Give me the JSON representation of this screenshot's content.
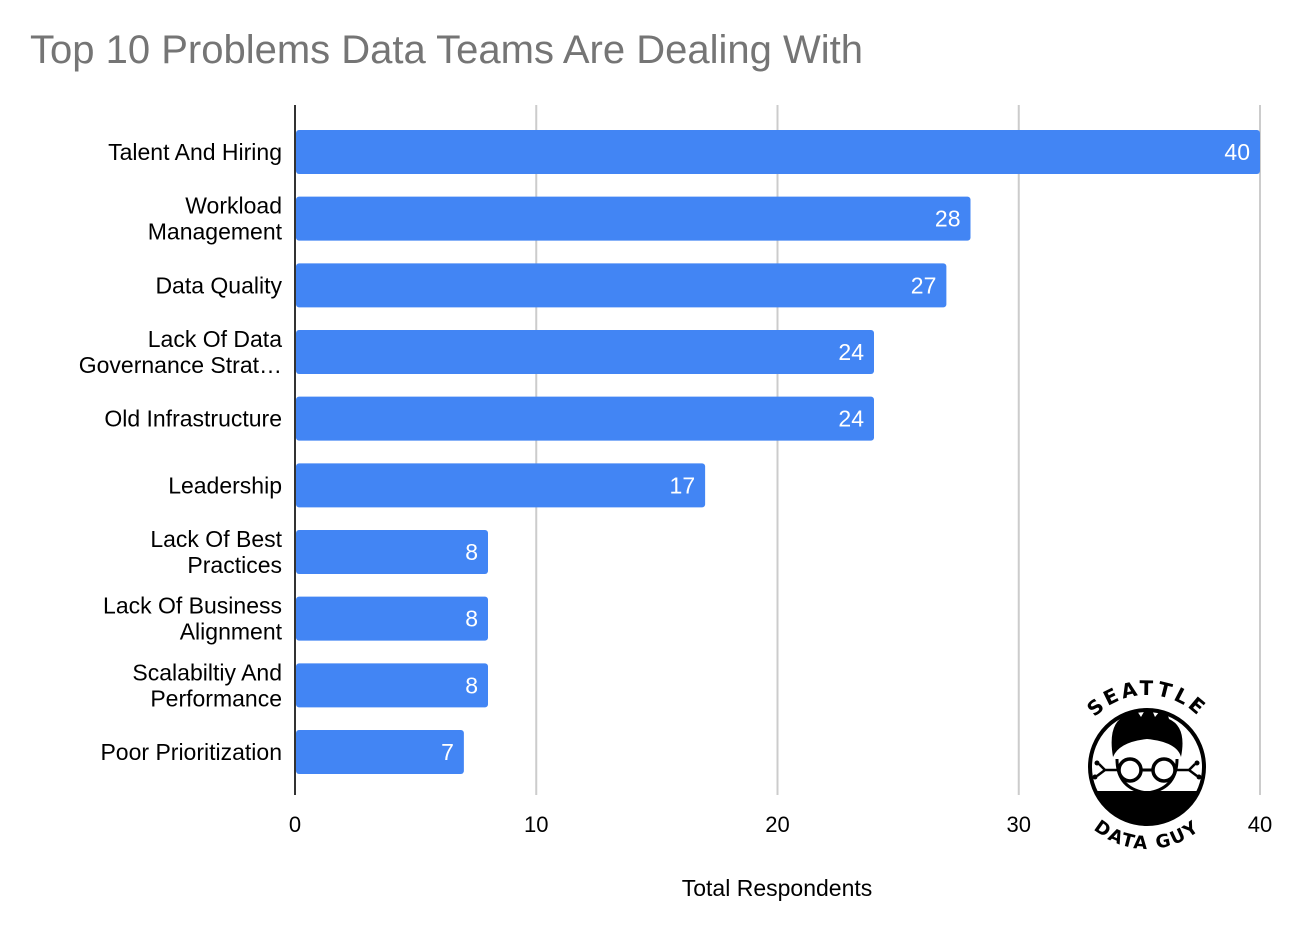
{
  "chart_data": {
    "type": "bar",
    "orientation": "horizontal",
    "title": "Top 10 Problems Data Teams Are Dealing With",
    "xlabel": "Total Respondents",
    "ylabel": "",
    "xlim": [
      0,
      40
    ],
    "ticks": [
      0,
      10,
      20,
      30,
      40
    ],
    "grid": true,
    "legend": "none",
    "bar_color": "#4285f4",
    "categories": [
      [
        "Talent And Hiring"
      ],
      [
        "Workload",
        "Management"
      ],
      [
        "Data Quality"
      ],
      [
        "Lack Of Data",
        "Governance Strat…"
      ],
      [
        "Old Infrastructure"
      ],
      [
        "Leadership"
      ],
      [
        "Lack Of Best",
        "Practices"
      ],
      [
        "Lack Of Business",
        "Alignment"
      ],
      [
        "Scalabiltiy And",
        "Performance"
      ],
      [
        "Poor Prioritization"
      ]
    ],
    "values": [
      40,
      28,
      27,
      24,
      24,
      17,
      8,
      8,
      8,
      7
    ]
  },
  "logo": {
    "top_text": "SEATTLE",
    "bottom_text": "DATA GUY"
  }
}
